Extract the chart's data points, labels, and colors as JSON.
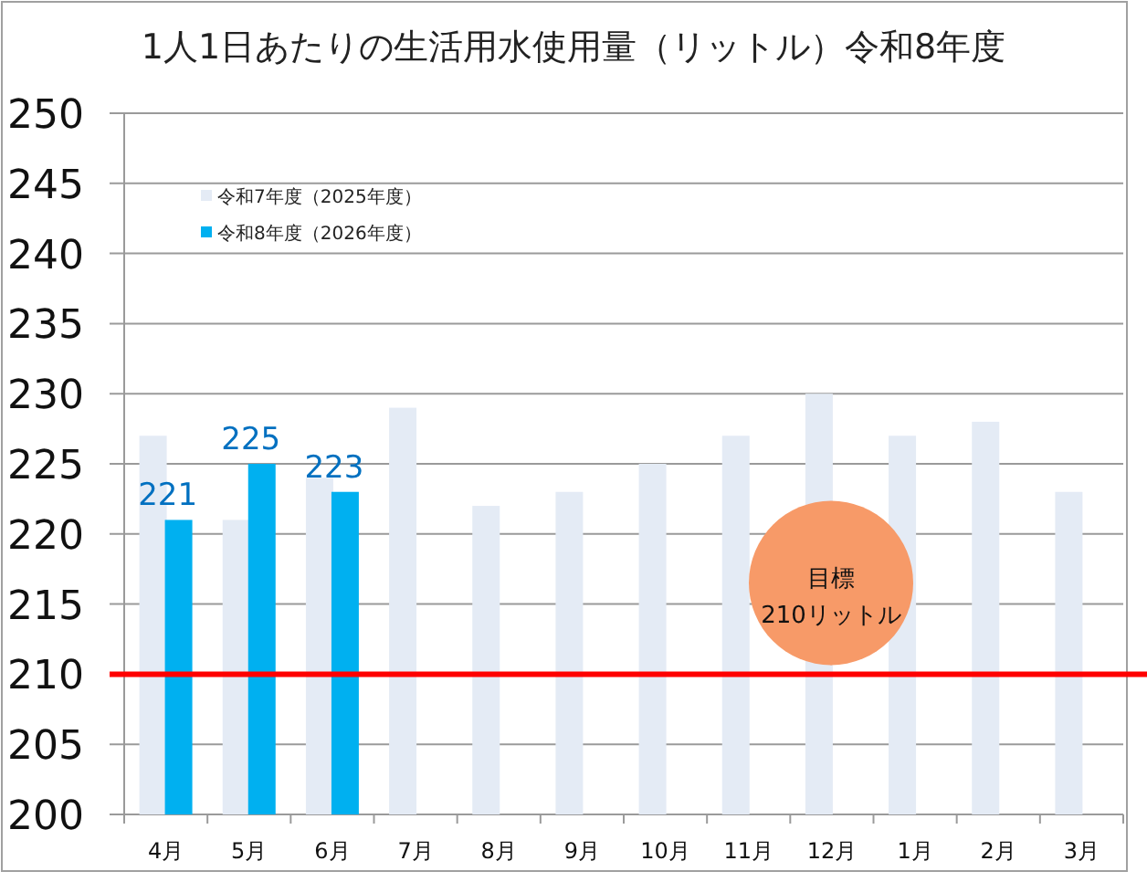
{
  "chart_data": {
    "type": "bar",
    "title": "1人1日あたりの生活用水使用量（リットル）令和8年度",
    "categories": [
      "4月",
      "5月",
      "6月",
      "7月",
      "8月",
      "9月",
      "10月",
      "11月",
      "12月",
      "1月",
      "2月",
      "3月"
    ],
    "series": [
      {
        "name": "令和7年度（2025年度）",
        "color": "#e4ebf5",
        "values": [
          227,
          221,
          224,
          229,
          222,
          223,
          225,
          227,
          230,
          227,
          228,
          223
        ]
      },
      {
        "name": "令和8年度（2026年度）",
        "color": "#00b0f0",
        "values": [
          221,
          225,
          223,
          null,
          null,
          null,
          null,
          null,
          null,
          null,
          null,
          null
        ],
        "value_labels": [
          "221",
          "225",
          "223",
          null,
          null,
          null,
          null,
          null,
          null,
          null,
          null,
          null
        ]
      }
    ],
    "ylim": [
      200,
      250
    ],
    "yticks": [
      200,
      205,
      210,
      215,
      220,
      225,
      230,
      235,
      240,
      245,
      250
    ],
    "ref_lines": [
      {
        "axis": "y",
        "value": 210,
        "label": "目標\n210リットル",
        "color": "#ff0000"
      }
    ],
    "grid": "y",
    "legend": "top left"
  }
}
